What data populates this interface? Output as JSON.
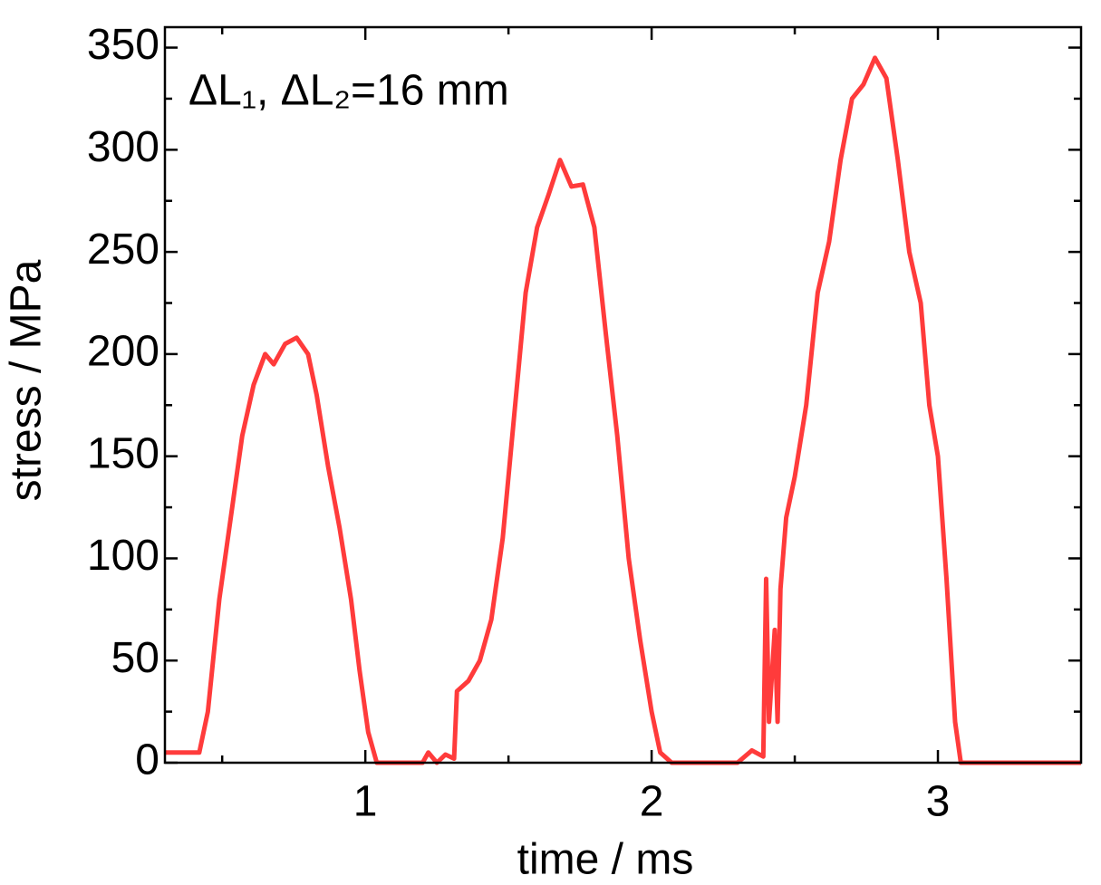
{
  "chart_data": {
    "type": "line",
    "annotation": "ΔL₁, ΔL₂=16 mm",
    "x_label": "time / ms",
    "y_label": "stress / MPa",
    "xlim": [
      0.3,
      3.5
    ],
    "ylim": [
      0,
      360
    ],
    "xticks": [
      1,
      2,
      3
    ],
    "xminorticks": [
      0.5,
      1.5,
      2.5
    ],
    "yticks": [
      0,
      50,
      100,
      150,
      200,
      250,
      300,
      350
    ],
    "yminorticks": [
      25,
      75,
      125,
      175,
      225,
      275,
      325
    ],
    "grid": false,
    "series": [
      {
        "name": "stress",
        "color": "#ff3b3b",
        "x": [
          0.3,
          0.42,
          0.45,
          0.49,
          0.54,
          0.57,
          0.61,
          0.65,
          0.68,
          0.72,
          0.76,
          0.8,
          0.83,
          0.87,
          0.91,
          0.95,
          0.98,
          1.01,
          1.04,
          1.2,
          1.22,
          1.25,
          1.28,
          1.31,
          1.32,
          1.36,
          1.4,
          1.44,
          1.48,
          1.52,
          1.56,
          1.6,
          1.64,
          1.68,
          1.72,
          1.76,
          1.8,
          1.84,
          1.88,
          1.92,
          1.96,
          2.0,
          2.03,
          2.07,
          2.3,
          2.35,
          2.39,
          2.4,
          2.41,
          2.43,
          2.44,
          2.45,
          2.47,
          2.5,
          2.54,
          2.58,
          2.62,
          2.66,
          2.7,
          2.74,
          2.78,
          2.82,
          2.86,
          2.9,
          2.94,
          2.97,
          3.0,
          3.03,
          3.06,
          3.08,
          3.5
        ],
        "values": [
          5,
          5,
          25,
          80,
          130,
          160,
          185,
          200,
          195,
          205,
          208,
          200,
          180,
          145,
          115,
          80,
          45,
          15,
          0,
          0,
          5,
          0,
          4,
          2,
          35,
          40,
          50,
          70,
          110,
          170,
          230,
          262,
          278,
          295,
          282,
          283,
          262,
          210,
          160,
          100,
          60,
          25,
          5,
          0,
          0,
          6,
          3,
          90,
          20,
          65,
          20,
          85,
          120,
          140,
          175,
          230,
          255,
          295,
          325,
          332,
          345,
          335,
          295,
          250,
          225,
          175,
          150,
          90,
          20,
          0,
          0
        ]
      }
    ]
  }
}
